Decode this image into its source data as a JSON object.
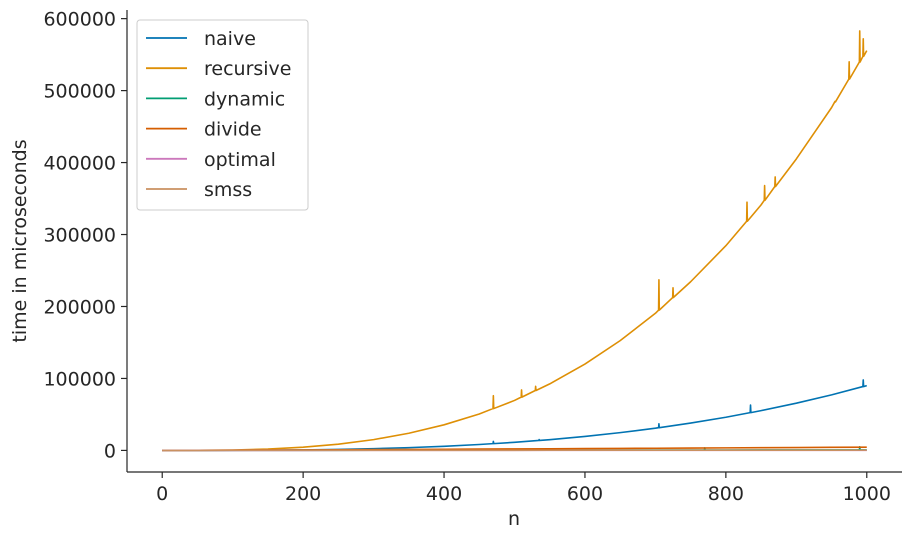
{
  "chart_data": {
    "type": "line",
    "xlabel": "n",
    "ylabel": "time in microseconds",
    "xlim": [
      -50,
      1050
    ],
    "ylim": [
      -30000,
      612000
    ],
    "xticks": [
      0,
      200,
      400,
      600,
      800,
      1000
    ],
    "yticks": [
      0,
      100000,
      200000,
      300000,
      400000,
      500000,
      600000
    ],
    "grid": false,
    "legend_position": "top-left",
    "x": [
      0,
      50,
      100,
      150,
      200,
      250,
      300,
      350,
      400,
      450,
      500,
      550,
      600,
      650,
      700,
      750,
      800,
      850,
      900,
      950,
      1000
    ],
    "series": [
      {
        "name": "naive",
        "color": "#0173b2",
        "values": [
          0,
          11,
          90,
          304,
          720,
          1406,
          2430,
          3859,
          5760,
          8201,
          11250,
          14974,
          19440,
          24716,
          30870,
          37969,
          46080,
          55271,
          65610,
          77164,
          90000
        ],
        "spikes": [
          [
            470,
            12500
          ],
          [
            535,
            15000
          ],
          [
            705,
            37000
          ],
          [
            835,
            63000
          ],
          [
            995,
            98000
          ]
        ]
      },
      {
        "name": "recursive",
        "color": "#de8f05",
        "values": [
          0,
          70,
          556,
          1875,
          4444,
          8681,
          15000,
          23819,
          35556,
          50625,
          69444,
          92431,
          120000,
          152569,
          190556,
          234375,
          284444,
          341181,
          405000,
          476319,
          555556
        ],
        "spikes": [
          [
            470,
            76000
          ],
          [
            510,
            84000
          ],
          [
            530,
            89000
          ],
          [
            705,
            237000
          ],
          [
            725,
            226000
          ],
          [
            830,
            345000
          ],
          [
            855,
            368000
          ],
          [
            870,
            380000
          ],
          [
            955,
            485000
          ],
          [
            975,
            540000
          ],
          [
            990,
            583000
          ],
          [
            995,
            572000
          ]
        ]
      },
      {
        "name": "dynamic",
        "color": "#029e73",
        "values": [
          0,
          35,
          70,
          105,
          140,
          175,
          210,
          245,
          280,
          315,
          350,
          385,
          420,
          455,
          490,
          525,
          560,
          595,
          630,
          665,
          700
        ],
        "spikes": [
          [
            770,
            3500
          ],
          [
            990,
            5000
          ]
        ]
      },
      {
        "name": "divide",
        "color": "#d55e00",
        "values": [
          0,
          149,
          329,
          522,
          725,
          935,
          1151,
          1373,
          1599,
          1828,
          2061,
          2297,
          2536,
          2777,
          3021,
          3267,
          3515,
          3765,
          4017,
          4270,
          4525
        ],
        "spikes": []
      },
      {
        "name": "optimal",
        "color": "#cc78bc",
        "values": [
          0,
          8,
          15,
          23,
          30,
          38,
          45,
          53,
          60,
          68,
          75,
          83,
          90,
          98,
          105,
          113,
          120,
          128,
          135,
          143,
          150
        ],
        "spikes": []
      },
      {
        "name": "smss",
        "color": "#ca9161",
        "values": [
          0,
          20,
          40,
          60,
          80,
          100,
          120,
          140,
          160,
          180,
          200,
          220,
          240,
          260,
          280,
          300,
          320,
          340,
          360,
          380,
          400
        ],
        "spikes": []
      }
    ]
  }
}
